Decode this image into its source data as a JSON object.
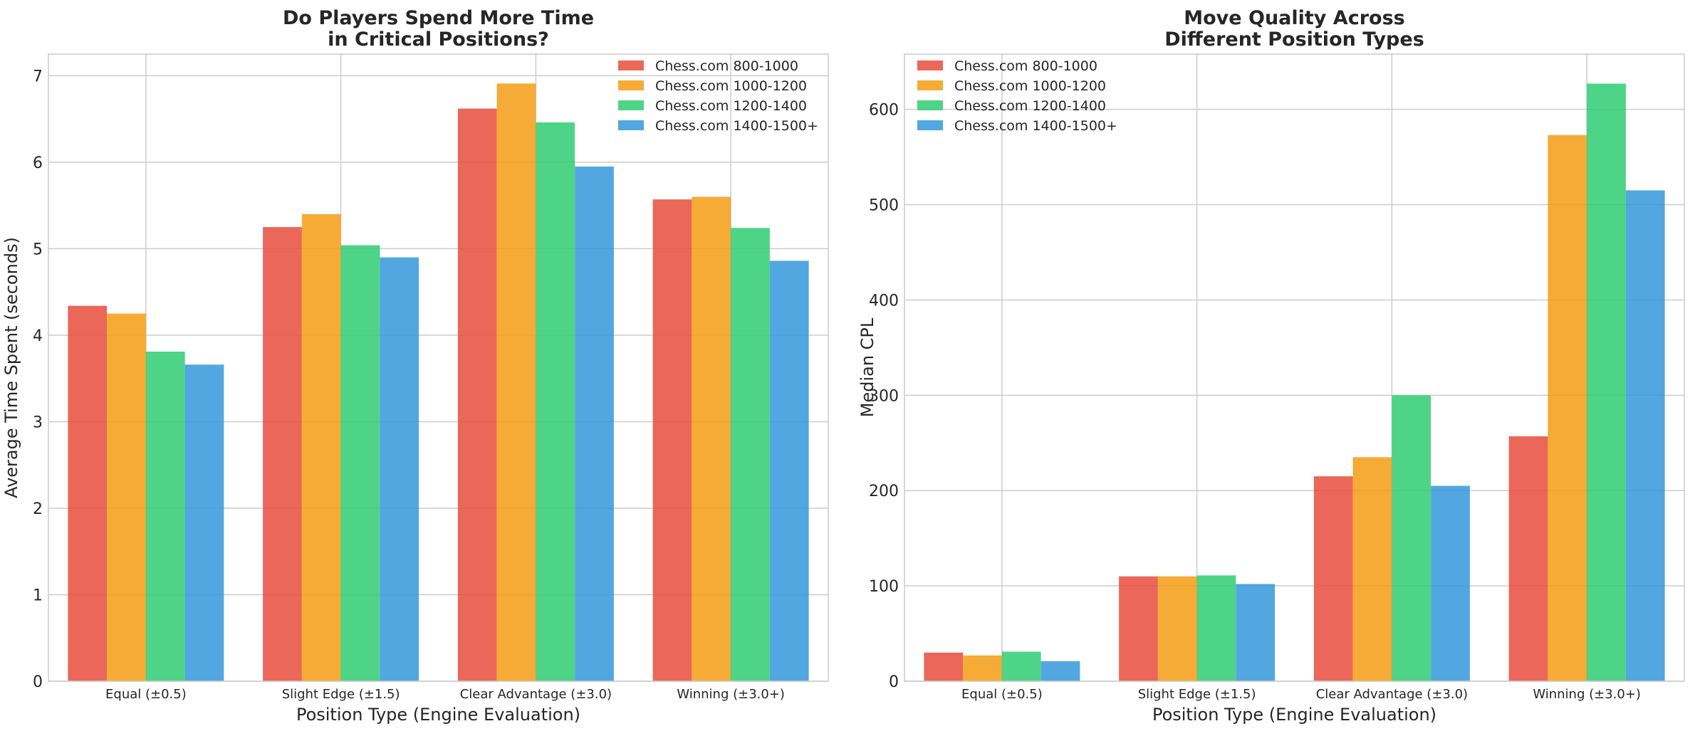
{
  "chart_data": [
    {
      "type": "bar",
      "title_lines": [
        "Do Players Spend More Time",
        "in Critical Positions?"
      ],
      "xlabel": "Position Type (Engine Evaluation)",
      "ylabel": "Average Time Spent (seconds)",
      "categories": [
        "Equal (±0.5)",
        "Slight Edge (±1.5)",
        "Clear Advantage (±3.0)",
        "Winning (±3.0+)"
      ],
      "ylim": [
        0,
        7.25
      ],
      "yticks": [
        0,
        1,
        2,
        3,
        4,
        5,
        6,
        7
      ],
      "grid": true,
      "legend_position": "top-right",
      "series": [
        {
          "name": "Chess.com 800-1000",
          "color": "#e74c3c",
          "values": [
            4.34,
            5.25,
            6.62,
            5.57
          ]
        },
        {
          "name": "Chess.com 1000-1200",
          "color": "#f39c12",
          "values": [
            4.25,
            5.4,
            6.91,
            5.6
          ]
        },
        {
          "name": "Chess.com 1200-1400",
          "color": "#2ecc71",
          "values": [
            3.81,
            5.04,
            6.46,
            5.24
          ]
        },
        {
          "name": "Chess.com 1400-1500+",
          "color": "#3498db",
          "values": [
            3.66,
            4.9,
            5.95,
            4.86
          ]
        }
      ]
    },
    {
      "type": "bar",
      "title_lines": [
        "Move Quality Across",
        "Different Position Types"
      ],
      "xlabel": "Position Type (Engine Evaluation)",
      "ylabel": "Median CPL",
      "categories": [
        "Equal (±0.5)",
        "Slight Edge (±1.5)",
        "Clear Advantage (±3.0)",
        "Winning (±3.0+)"
      ],
      "ylim": [
        0,
        658
      ],
      "yticks": [
        0,
        100,
        200,
        300,
        400,
        500,
        600
      ],
      "grid": true,
      "legend_position": "top-left",
      "series": [
        {
          "name": "Chess.com 800-1000",
          "color": "#e74c3c",
          "values": [
            30,
            110,
            215,
            257
          ]
        },
        {
          "name": "Chess.com 1000-1200",
          "color": "#f39c12",
          "values": [
            27,
            110,
            235,
            573
          ]
        },
        {
          "name": "Chess.com 1200-1400",
          "color": "#2ecc71",
          "values": [
            31,
            111,
            300,
            627
          ]
        },
        {
          "name": "Chess.com 1400-1500+",
          "color": "#3498db",
          "values": [
            21,
            102,
            205,
            515
          ]
        }
      ]
    }
  ]
}
